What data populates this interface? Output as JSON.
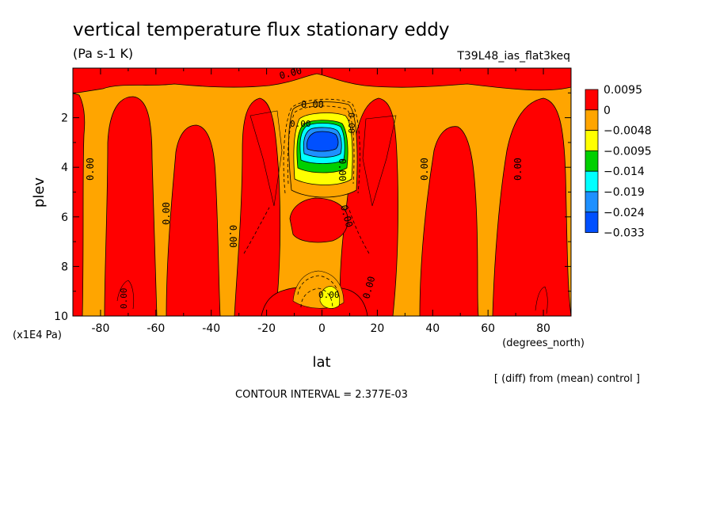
{
  "chart_data": {
    "type": "heatmap",
    "title": "vertical temperature flux stationary eddy",
    "units": "(Pa s-1 K)",
    "run_label": "T39L48_ias_flat3keq",
    "xlabel": "lat",
    "x_units": "(degrees_north)",
    "ylabel": "plev",
    "y_units": "(x1E4 Pa)",
    "xlim": [
      -90,
      90
    ],
    "ylim": [
      10,
      0
    ],
    "x_ticks": [
      -80,
      -60,
      -40,
      -20,
      0,
      20,
      40,
      60,
      80
    ],
    "x_tick_labels": [
      "-80",
      "-60",
      "-40",
      "-20",
      "0",
      "20",
      "40",
      "60",
      "80"
    ],
    "y_ticks": [
      2,
      4,
      6,
      8,
      10
    ],
    "y_tick_labels": [
      "2",
      "4",
      "6",
      "8",
      "10"
    ],
    "contour_interval_text": "CONTOUR INTERVAL = 2.377E-03",
    "diff_note": "[ (diff) from (mean) control ]",
    "colorbar": {
      "labels": [
        "0.0095",
        "0",
        "−0.0048",
        "−0.0095",
        "−0.014",
        "−0.019",
        "−0.024",
        "−0.033"
      ],
      "colors": [
        "#ff0000",
        "#ffa500",
        "#ffff00",
        "#00d000",
        "#00ffff",
        "#1e90ff",
        "#0050ff"
      ]
    },
    "contour_labels": [
      "0.00",
      "0.00",
      "0.00",
      "0.00",
      "0.00",
      "0.00",
      "0.00",
      "0.00",
      "0.00",
      "0.00",
      "0.00",
      "0.00",
      "0.00",
      "0.00"
    ],
    "colors": {
      "positive": "#ff0000",
      "near_zero": "#ffa500"
    }
  }
}
